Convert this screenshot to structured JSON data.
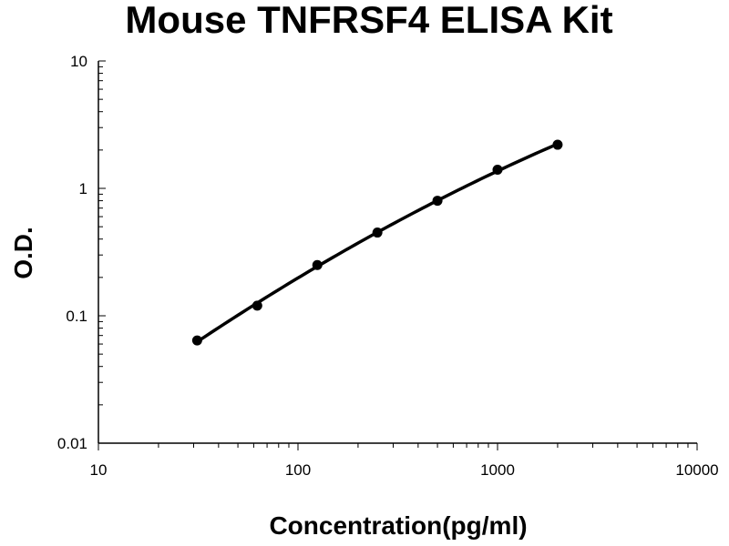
{
  "chart_data": {
    "type": "scatter",
    "title": "Mouse TNFRSF4 ELISA Kit",
    "xlabel": "Concentration(pg/ml)",
    "ylabel": "O.D.",
    "xscale": "log",
    "yscale": "log",
    "xlim": [
      10,
      10000
    ],
    "ylim": [
      0.01,
      10
    ],
    "xticks": [
      "10",
      "100",
      "1000",
      "10000"
    ],
    "yticks": [
      "0.01",
      "0.1",
      "1",
      "10"
    ],
    "grid": false,
    "legend": "none",
    "series": [
      {
        "points": [
          {
            "x": 31.25,
            "y": 0.064
          },
          {
            "x": 62.5,
            "y": 0.12
          },
          {
            "x": 125,
            "y": 0.25
          },
          {
            "x": 250,
            "y": 0.45
          },
          {
            "x": 500,
            "y": 0.8
          },
          {
            "x": 1000,
            "y": 1.4
          },
          {
            "x": 2000,
            "y": 2.2
          }
        ],
        "fit": "smooth curve",
        "color": "#000000"
      }
    ]
  }
}
